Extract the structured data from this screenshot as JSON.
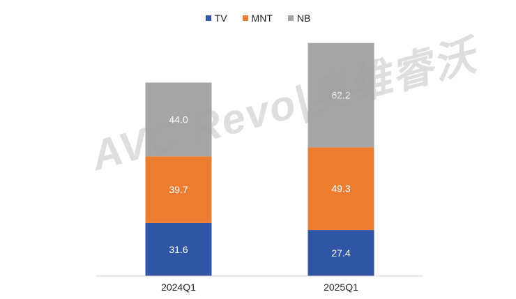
{
  "legend": {
    "items": [
      {
        "label": "TV",
        "color": "#2F55A4"
      },
      {
        "label": "MNT",
        "color": "#ED7D31"
      },
      {
        "label": "NB",
        "color": "#A5A5A5"
      }
    ]
  },
  "watermark": {
    "text": "AVC Revo|奥维睿沃"
  },
  "chart_data": {
    "type": "bar",
    "stacked": true,
    "categories": [
      "2024Q1",
      "2025Q1"
    ],
    "series": [
      {
        "name": "TV",
        "color": "#2F55A4",
        "values": [
          31.6,
          27.4
        ]
      },
      {
        "name": "MNT",
        "color": "#ED7D31",
        "values": [
          39.7,
          49.3
        ]
      },
      {
        "name": "NB",
        "color": "#A5A5A5",
        "values": [
          44.0,
          62.2
        ]
      }
    ],
    "value_labels": [
      [
        "31.6",
        "27.4"
      ],
      [
        "39.7",
        "49.3"
      ],
      [
        "44.0",
        "62.2"
      ]
    ],
    "ylim": [
      0,
      140
    ],
    "grid": false,
    "legend_position": "top"
  }
}
